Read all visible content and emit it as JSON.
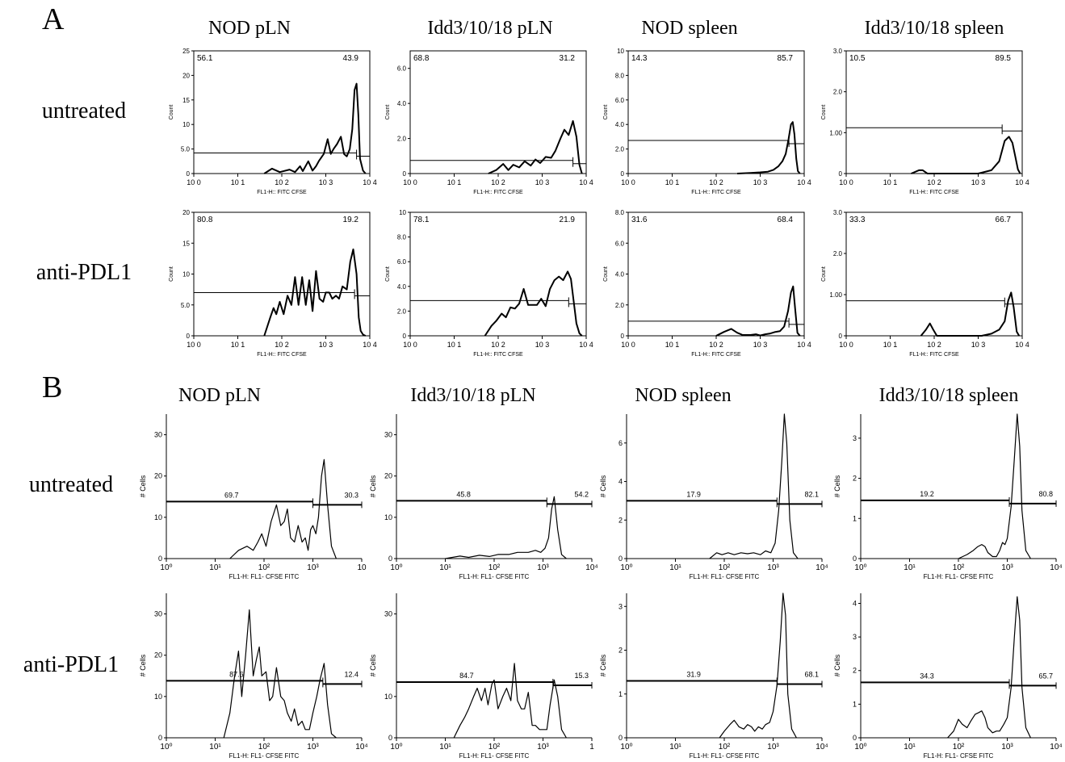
{
  "panels": {
    "A": {
      "label": "A",
      "columns": [
        "NOD pLN",
        "Idd3/10/18 pLN",
        "NOD spleen",
        "Idd3/10/18 spleen"
      ],
      "rows": [
        "untreated",
        "anti-PDL1"
      ]
    },
    "B": {
      "label": "B",
      "columns": [
        "NOD pLN",
        "Idd3/10/18 pLN",
        "NOD spleen",
        "Idd3/10/18 spleen"
      ],
      "rows": [
        "untreated",
        "anti-PDL1"
      ]
    }
  },
  "chart_data": [
    {
      "type": "area",
      "panel": "A",
      "row": "untreated",
      "column": "NOD pLN",
      "xlabel": "FL1-H:: FITC CFSE",
      "ylabel": "Count",
      "x_scale": "log",
      "xlim": [
        1,
        10000
      ],
      "ylim": [
        0,
        25
      ],
      "xticks": [
        "10 0",
        "10 1",
        "10 2",
        "10 3",
        "10 4"
      ],
      "yticks": [
        "0",
        "5.0",
        "10",
        "15",
        "20",
        "25"
      ],
      "gate_left": "56.1",
      "gate_right": "43.9",
      "gate_y": 4.2,
      "gate_split_x": 5000,
      "x": [
        40,
        60,
        90,
        150,
        200,
        260,
        300,
        400,
        500,
        600,
        700,
        900,
        1100,
        1300,
        1500,
        1800,
        2200,
        2600,
        3000,
        3500,
        4000,
        4500,
        5000,
        5500,
        6000,
        7000,
        8000
      ],
      "y": [
        0,
        1,
        0.3,
        0.8,
        0.3,
        1.5,
        0.5,
        2.5,
        0.6,
        1.5,
        2.6,
        4,
        7,
        4,
        5,
        6,
        7.5,
        4,
        3.5,
        5,
        9,
        17,
        18.3,
        12,
        3,
        0.6,
        0
      ]
    },
    {
      "type": "area",
      "panel": "A",
      "row": "untreated",
      "column": "Idd3/10/18 pLN",
      "xlabel": "FL1-H:: FITC CFSE",
      "ylabel": "Count",
      "x_scale": "log",
      "xlim": [
        1,
        10000
      ],
      "ylim": [
        0,
        7
      ],
      "xticks": [
        "10 0",
        "10 1",
        "10 2",
        "10 3",
        "10 4"
      ],
      "yticks": [
        "0",
        "2.0",
        "4.0",
        "6.0"
      ],
      "gate_left": "68.8",
      "gate_right": "31.2",
      "gate_y": 0.75,
      "gate_split_x": 5000,
      "x": [
        60,
        90,
        130,
        170,
        220,
        300,
        400,
        550,
        700,
        900,
        1200,
        1600,
        2000,
        2600,
        3200,
        4000,
        5000,
        6000,
        7000,
        8000
      ],
      "y": [
        0,
        0.2,
        0.55,
        0.2,
        0.5,
        0.35,
        0.7,
        0.45,
        0.8,
        0.6,
        0.95,
        0.9,
        1.3,
        2,
        2.5,
        2.2,
        3,
        2.1,
        0.5,
        0
      ]
    },
    {
      "type": "area",
      "panel": "A",
      "row": "untreated",
      "column": "NOD spleen",
      "xlabel": "FL1-H:: FITC CFSE",
      "ylabel": "Count",
      "x_scale": "log",
      "xlim": [
        1,
        10000
      ],
      "ylim": [
        0,
        10
      ],
      "xticks": [
        "10 0",
        "10 1",
        "10 2",
        "10 3",
        "10 4"
      ],
      "yticks": [
        "0",
        "2.0",
        "4.0",
        "6.0",
        "8.0",
        "10"
      ],
      "gate_left": "14.3",
      "gate_right": "85.7",
      "gate_y": 2.7,
      "gate_split_x": 4500,
      "x": [
        300,
        600,
        1000,
        1500,
        2000,
        2600,
        3200,
        3800,
        4400,
        5000,
        5500,
        6000,
        6600,
        7200,
        8000
      ],
      "y": [
        0,
        0.05,
        0.1,
        0.15,
        0.3,
        0.6,
        1,
        1.6,
        2.8,
        4,
        4.2,
        3.2,
        1.2,
        0.2,
        0
      ]
    },
    {
      "type": "area",
      "panel": "A",
      "row": "untreated",
      "column": "Idd3/10/18 spleen",
      "xlabel": "FL1-H:: FITC CFSE",
      "ylabel": "Count",
      "x_scale": "log",
      "xlim": [
        1,
        10000
      ],
      "ylim": [
        0,
        3
      ],
      "xticks": [
        "10 0",
        "10 1",
        "10 2",
        "10 3",
        "10 4"
      ],
      "yticks": [
        "0",
        "1.00",
        "2.0",
        "3.0"
      ],
      "gate_left": "10.5",
      "gate_right": "89.5",
      "gate_y": 1.12,
      "gate_split_x": 3500,
      "x": [
        30,
        45,
        55,
        70,
        1000,
        2000,
        3000,
        4000,
        5000,
        6000,
        7000,
        8000,
        9000
      ],
      "y": [
        0,
        0.08,
        0.08,
        0,
        0,
        0.08,
        0.3,
        0.8,
        0.9,
        0.75,
        0.4,
        0.1,
        0
      ]
    },
    {
      "type": "area",
      "panel": "A",
      "row": "anti-PDL1",
      "column": "NOD pLN",
      "xlabel": "FL1-H:: FITC CFSE",
      "ylabel": "Count",
      "x_scale": "log",
      "xlim": [
        1,
        10000
      ],
      "ylim": [
        0,
        20
      ],
      "xticks": [
        "10 0",
        "10 1",
        "10 2",
        "10 3",
        "10 4"
      ],
      "yticks": [
        "0",
        "5.0",
        "10",
        "15",
        "20"
      ],
      "gate_left": "80.8",
      "gate_right": "19.2",
      "gate_y": 7,
      "gate_split_x": 4500,
      "x": [
        40,
        55,
        65,
        75,
        90,
        110,
        135,
        165,
        200,
        240,
        290,
        350,
        420,
        500,
        600,
        720,
        870,
        1000,
        1200,
        1400,
        1700,
        2000,
        2400,
        3000,
        3600,
        4200,
        5000,
        5600,
        6200,
        7000,
        8000
      ],
      "y": [
        0,
        3,
        4.5,
        3.5,
        5.5,
        3.5,
        6.5,
        5,
        9.5,
        5,
        9.5,
        5,
        9,
        4,
        10.5,
        6,
        5.5,
        7,
        7,
        6,
        6.5,
        6,
        8,
        7.5,
        12,
        14,
        10,
        3,
        0.8,
        0.2,
        0
      ]
    },
    {
      "type": "area",
      "panel": "A",
      "row": "anti-PDL1",
      "column": "Idd3/10/18 pLN",
      "xlabel": "FL1-H:: FITC CFSE",
      "ylabel": "Count",
      "x_scale": "log",
      "xlim": [
        1,
        10000
      ],
      "ylim": [
        0,
        10
      ],
      "xticks": [
        "10 0",
        "10 1",
        "10 2",
        "10 3",
        "10 4"
      ],
      "yticks": [
        "0",
        "2.0",
        "4.0",
        "6.0",
        "8.0",
        "10"
      ],
      "gate_left": "78.1",
      "gate_right": "21.9",
      "gate_y": 2.85,
      "gate_split_x": 4000,
      "x": [
        50,
        70,
        90,
        120,
        150,
        190,
        240,
        300,
        380,
        480,
        600,
        760,
        950,
        1200,
        1500,
        1900,
        2400,
        3000,
        3800,
        4500,
        5200,
        6000,
        7000,
        8000
      ],
      "y": [
        0,
        0.8,
        1.2,
        1.8,
        1.5,
        2.3,
        2.2,
        2.6,
        3.8,
        2.5,
        2.5,
        2.5,
        3,
        2.4,
        3.8,
        4.5,
        4.8,
        4.5,
        5.2,
        4.6,
        2.8,
        1,
        0.2,
        0
      ]
    },
    {
      "type": "area",
      "panel": "A",
      "row": "anti-PDL1",
      "column": "NOD spleen",
      "xlabel": "FL1-H:: FITC CFSE",
      "ylabel": "Count",
      "x_scale": "log",
      "xlim": [
        1,
        10000
      ],
      "ylim": [
        0,
        8
      ],
      "xticks": [
        "10 0",
        "10 1",
        "10 2",
        "10 3",
        "10 4"
      ],
      "yticks": [
        "0",
        "2.0",
        "4.0",
        "6.0",
        "8.0"
      ],
      "gate_left": "31.6",
      "gate_right": "68.4",
      "gate_y": 0.95,
      "gate_split_x": 4500,
      "x": [
        100,
        150,
        220,
        300,
        400,
        600,
        800,
        1000,
        1300,
        1700,
        2200,
        2800,
        3500,
        4300,
        5000,
        5600,
        6200,
        7000,
        8000
      ],
      "y": [
        0,
        0.25,
        0.45,
        0.2,
        0.05,
        0.05,
        0.1,
        0.02,
        0.1,
        0.15,
        0.25,
        0.3,
        0.6,
        1.6,
        2.8,
        3.2,
        1.8,
        0.2,
        0
      ]
    },
    {
      "type": "area",
      "panel": "A",
      "row": "anti-PDL1",
      "column": "Idd3/10/18 spleen",
      "xlabel": "FL1-H:: FITC CFSE",
      "ylabel": "Count",
      "x_scale": "log",
      "xlim": [
        1,
        10000
      ],
      "ylim": [
        0,
        3
      ],
      "xticks": [
        "10 0",
        "10 1",
        "10 2",
        "10 3",
        "10 4"
      ],
      "yticks": [
        "0",
        "1.00",
        "2.0",
        "3.0"
      ],
      "gate_left": "33.3",
      "gate_right": "66.7",
      "gate_y": 0.85,
      "gate_split_x": 4000,
      "x": [
        50,
        65,
        80,
        95,
        115,
        1200,
        2000,
        3000,
        4000,
        4800,
        5600,
        6400,
        7500,
        8500
      ],
      "y": [
        0,
        0.15,
        0.3,
        0.15,
        0,
        0,
        0.05,
        0.15,
        0.35,
        0.85,
        1.05,
        0.7,
        0.1,
        0
      ]
    },
    {
      "type": "area",
      "panel": "B",
      "row": "untreated",
      "column": "NOD pLN",
      "xlabel": "FL1-H: FL1- CFSE FITC",
      "ylabel": "# Cells",
      "x_scale": "log",
      "xlim": [
        1,
        10000
      ],
      "ylim": [
        0,
        35
      ],
      "xticks": [
        "10⁰",
        "10¹",
        "10²",
        "10³",
        "10"
      ],
      "yticks": [
        "0",
        "10",
        "20",
        "30"
      ],
      "gate_left": "69.7",
      "gate_right": "30.3",
      "gate_y": 13.8,
      "gate_split_x": 1000,
      "x": [
        20,
        30,
        45,
        60,
        75,
        90,
        110,
        140,
        180,
        220,
        260,
        300,
        350,
        420,
        500,
        600,
        700,
        800,
        900,
        1000,
        1150,
        1300,
        1500,
        1700,
        2000,
        2400,
        3000
      ],
      "y": [
        0,
        2,
        3,
        2,
        4,
        6,
        3,
        9,
        13,
        8,
        9,
        12,
        5,
        4,
        8,
        4,
        5,
        2,
        7,
        8,
        6,
        10,
        20,
        24,
        13,
        3,
        0
      ]
    },
    {
      "type": "area",
      "panel": "B",
      "row": "untreated",
      "column": "Idd3/10/18 pLN",
      "xlabel": "FL1-H: FL1- CFSE FITC",
      "ylabel": "# Cells",
      "x_scale": "log",
      "xlim": [
        1,
        10000
      ],
      "ylim": [
        0,
        35
      ],
      "xticks": [
        "10⁰",
        "10¹",
        "10²",
        "10³",
        "10⁴"
      ],
      "yticks": [
        "0",
        "10",
        "20",
        "30"
      ],
      "gate_left": "45.8",
      "gate_right": "54.2",
      "gate_y": 14,
      "gate_split_x": 1200,
      "x": [
        10,
        20,
        30,
        50,
        80,
        120,
        200,
        300,
        500,
        700,
        900,
        1100,
        1300,
        1500,
        1700,
        2000,
        2400,
        3000
      ],
      "y": [
        0,
        0.6,
        0.3,
        0.8,
        0.5,
        1,
        1,
        1.5,
        1.5,
        2,
        1.5,
        2.5,
        5,
        12,
        15,
        7,
        1,
        0
      ]
    },
    {
      "type": "area",
      "panel": "B",
      "row": "untreated",
      "column": "NOD spleen",
      "xlabel": "FL1-H: FL1- CFSE FITC",
      "ylabel": "# Cells",
      "x_scale": "log",
      "xlim": [
        1,
        10000
      ],
      "ylim": [
        0,
        7.5
      ],
      "xticks": [
        "10⁰",
        "10¹",
        "10²",
        "10³",
        "10⁴"
      ],
      "yticks": [
        "0",
        "2",
        "4",
        "6"
      ],
      "gate_left": "17.9",
      "gate_right": "82.1",
      "gate_y": 3,
      "gate_split_x": 1200,
      "x": [
        50,
        70,
        90,
        120,
        160,
        220,
        300,
        400,
        550,
        700,
        900,
        1100,
        1300,
        1500,
        1700,
        1900,
        2200,
        2600,
        3200
      ],
      "y": [
        0,
        0.3,
        0.2,
        0.3,
        0.2,
        0.3,
        0.25,
        0.3,
        0.2,
        0.4,
        0.3,
        0.8,
        2.5,
        5,
        7.5,
        6,
        2,
        0.3,
        0
      ]
    },
    {
      "type": "area",
      "panel": "B",
      "row": "untreated",
      "column": "Idd3/10/18 spleen",
      "xlabel": "FL1-H: FL1- CFSE FITC",
      "ylabel": "# Cells",
      "x_scale": "log",
      "xlim": [
        1,
        10000
      ],
      "ylim": [
        0,
        3.6
      ],
      "xticks": [
        "10⁰",
        "10¹",
        "10²",
        "10³",
        "10⁴"
      ],
      "yticks": [
        "0",
        "1",
        "2",
        "3"
      ],
      "gate_left": "19.2",
      "gate_right": "80.8",
      "gate_y": 1.45,
      "gate_split_x": 1100,
      "x": [
        100,
        150,
        200,
        250,
        300,
        350,
        400,
        500,
        600,
        700,
        800,
        900,
        1000,
        1200,
        1400,
        1600,
        1800,
        2000,
        2400,
        3000
      ],
      "y": [
        0,
        0.1,
        0.2,
        0.3,
        0.35,
        0.3,
        0.15,
        0.05,
        0.05,
        0.2,
        0.4,
        0.35,
        0.5,
        1.3,
        2.5,
        3.6,
        2.8,
        1.2,
        0.2,
        0
      ]
    },
    {
      "type": "area",
      "panel": "B",
      "row": "anti-PDL1",
      "column": "NOD pLN",
      "xlabel": "FL1-H: FL1- CFSE FITC",
      "ylabel": "# Cells",
      "x_scale": "log",
      "xlim": [
        1,
        10000
      ],
      "ylim": [
        0,
        35
      ],
      "xticks": [
        "10⁰",
        "10¹",
        "10²",
        "10³",
        "10⁴"
      ],
      "yticks": [
        "0",
        "10",
        "20",
        "30"
      ],
      "gate_left": "87.6",
      "gate_right": "12.4",
      "gate_y": 13.8,
      "gate_split_x": 1600,
      "x": [
        15,
        20,
        25,
        30,
        35,
        42,
        50,
        60,
        70,
        80,
        90,
        110,
        130,
        150,
        180,
        220,
        260,
        300,
        360,
        420,
        500,
        600,
        700,
        850,
        1000,
        1200,
        1400,
        1700,
        2000,
        2400,
        3000
      ],
      "y": [
        0,
        6,
        15,
        21,
        10,
        20,
        31,
        15,
        19,
        22,
        15,
        16,
        9,
        10,
        17,
        10,
        9,
        6,
        4,
        7,
        3,
        4,
        2,
        2,
        6,
        10,
        14,
        18,
        8,
        1,
        0
      ]
    },
    {
      "type": "area",
      "panel": "B",
      "row": "anti-PDL1",
      "column": "Idd3/10/18 pLN",
      "xlabel": "FL1-H: FL1- CFSE FITC",
      "ylabel": "# Cells",
      "x_scale": "log",
      "xlim": [
        1,
        10000
      ],
      "ylim": [
        0,
        35
      ],
      "xticks": [
        "10⁰",
        "10¹",
        "10²",
        "10³",
        "1"
      ],
      "yticks": [
        "0",
        "10",
        "30"
      ],
      "gate_left": "84.7",
      "gate_right": "15.3",
      "gate_y": 13.5,
      "gate_split_x": 1600,
      "x": [
        15,
        20,
        25,
        30,
        38,
        45,
        55,
        65,
        75,
        90,
        100,
        120,
        150,
        180,
        220,
        260,
        300,
        360,
        420,
        500,
        600,
        700,
        850,
        1000,
        1200,
        1400,
        1700,
        2000,
        2400,
        3000
      ],
      "y": [
        0,
        3,
        5,
        7,
        10,
        12,
        9,
        12,
        8,
        13,
        14,
        7,
        10,
        12,
        9,
        18,
        9,
        7,
        7,
        11,
        3,
        3,
        2,
        2,
        2,
        8,
        14,
        10,
        2,
        0
      ]
    },
    {
      "type": "area",
      "panel": "B",
      "row": "anti-PDL1",
      "column": "NOD spleen",
      "xlabel": "FL1-H: FL1- CFSE FITC",
      "ylabel": "# Cells",
      "x_scale": "log",
      "xlim": [
        1,
        10000
      ],
      "ylim": [
        0,
        3.3
      ],
      "xticks": [
        "10⁰",
        "10¹",
        "10²",
        "10³",
        "10⁴"
      ],
      "yticks": [
        "0",
        "1",
        "2",
        "3"
      ],
      "gate_left": "31.9",
      "gate_right": "68.1",
      "gate_y": 1.3,
      "gate_split_x": 1200,
      "x": [
        80,
        100,
        130,
        160,
        200,
        250,
        300,
        360,
        420,
        500,
        600,
        700,
        850,
        1000,
        1200,
        1400,
        1600,
        1800,
        2000,
        2400,
        3000
      ],
      "y": [
        0,
        0.15,
        0.3,
        0.4,
        0.25,
        0.2,
        0.3,
        0.25,
        0.15,
        0.25,
        0.2,
        0.3,
        0.35,
        0.6,
        1.2,
        2.2,
        3.3,
        2.8,
        1,
        0.2,
        0
      ]
    },
    {
      "type": "area",
      "panel": "B",
      "row": "anti-PDL1",
      "column": "Idd3/10/18 spleen",
      "xlabel": "FL1-H: FL1- CFSE FITC",
      "ylabel": "# Cells",
      "x_scale": "log",
      "xlim": [
        1,
        10000
      ],
      "ylim": [
        0,
        4.3
      ],
      "xticks": [
        "10⁰",
        "10¹",
        "10²",
        "10³",
        "10⁴"
      ],
      "yticks": [
        "0",
        "1",
        "2",
        "3",
        "4"
      ],
      "gate_left": "34.3",
      "gate_right": "65.7",
      "gate_y": 1.65,
      "gate_split_x": 1100,
      "x": [
        60,
        80,
        100,
        120,
        150,
        180,
        220,
        260,
        300,
        350,
        400,
        500,
        600,
        700,
        850,
        1000,
        1200,
        1400,
        1600,
        1800,
        2000,
        2400,
        3000
      ],
      "y": [
        0,
        0.2,
        0.55,
        0.4,
        0.3,
        0.5,
        0.7,
        0.75,
        0.8,
        0.6,
        0.3,
        0.15,
        0.2,
        0.2,
        0.4,
        0.6,
        1.5,
        3,
        4.2,
        3.5,
        1.5,
        0.3,
        0
      ]
    }
  ]
}
